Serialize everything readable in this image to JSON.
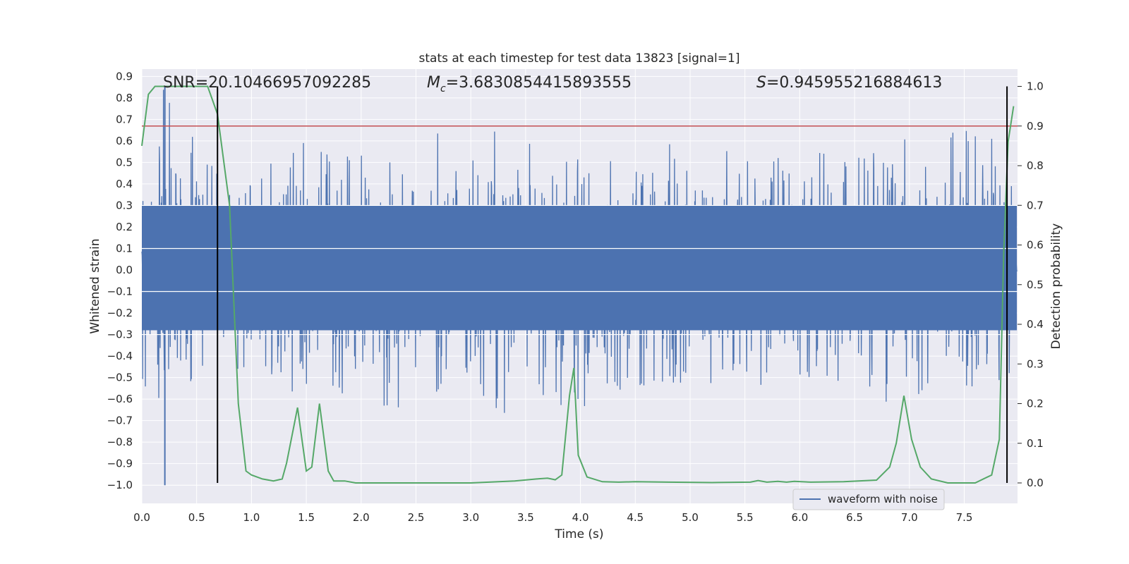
{
  "chart_data": {
    "type": "line",
    "title": "stats at each timestep for test data 13823 [signal=1]",
    "xlabel": "Time (s)",
    "ylabel": "Whitened strain",
    "y2label": "Detection probability",
    "xlim": [
      0.0,
      8.0
    ],
    "ylim": [
      -1.09,
      0.93
    ],
    "y2lim": [
      -0.05,
      1.04
    ],
    "x_ticks": [
      "0.0",
      "0.5",
      "1.0",
      "1.5",
      "2.0",
      "2.5",
      "3.0",
      "3.5",
      "4.0",
      "4.5",
      "5.0",
      "5.5",
      "6.0",
      "6.5",
      "7.0",
      "7.5"
    ],
    "y_ticks": [
      "0.9",
      "0.8",
      "0.7",
      "0.6",
      "0.5",
      "0.4",
      "0.3",
      "0.2",
      "0.1",
      "0.0",
      "−0.1",
      "−0.2",
      "−0.3",
      "−0.4",
      "−0.5",
      "−0.6",
      "−0.7",
      "−0.8",
      "−0.9",
      "−1.0"
    ],
    "y2_ticks": [
      "1.0",
      "0.9",
      "0.8",
      "0.7",
      "0.6",
      "0.5",
      "0.4",
      "0.3",
      "0.2",
      "0.1",
      "0.0"
    ],
    "grid": true,
    "legend": {
      "location": "lower-right",
      "entries": [
        "waveform with noise"
      ]
    },
    "annotations": {
      "snr": "SNR=20.10466957092285",
      "mc_symbol": "M",
      "mc_sub": "c",
      "mc_value": "=3.6830854415893555",
      "s_symbol": "S",
      "s_value": "=0.945955216884613"
    },
    "colors": {
      "waveform": "#4c72b0",
      "probability": "#55a868",
      "threshold": "#c44e52",
      "marker": "#000000",
      "plot_bg": "#eaeaf2",
      "grid": "#ffffff"
    },
    "threshold_probability": 0.9,
    "vertical_markers_time": [
      0.69,
      7.89
    ],
    "waveform_envelope": {
      "x": [
        0.0,
        0.2,
        0.38,
        0.55,
        0.7,
        1.0,
        1.5,
        2.0,
        2.3,
        2.75,
        3.0,
        3.25,
        3.5,
        3.9,
        4.5,
        5.0,
        5.5,
        6.0,
        6.5,
        6.8,
        7.15,
        7.5,
        7.7,
        8.0
      ],
      "upper": [
        0.45,
        0.86,
        0.65,
        0.6,
        0.5,
        0.45,
        0.6,
        0.55,
        0.52,
        0.67,
        0.6,
        0.55,
        0.6,
        0.55,
        0.6,
        0.6,
        0.57,
        0.52,
        0.6,
        0.55,
        0.75,
        0.67,
        0.6,
        0.4
      ],
      "lower": [
        -0.5,
        -0.9,
        -0.6,
        -0.55,
        -0.5,
        -0.45,
        -0.65,
        -0.6,
        -0.76,
        -0.55,
        -0.5,
        -0.7,
        -0.55,
        -0.7,
        -0.55,
        -0.55,
        -0.5,
        -0.5,
        -0.55,
        -0.64,
        -0.5,
        -0.55,
        -0.68,
        -0.45
      ]
    },
    "series": [
      {
        "name": "waveform with noise",
        "x": [
          0.0,
          0.0,
          0.21,
          0.21,
          0.21,
          8.0
        ],
        "y": [
          0.0,
          0.0,
          0.85,
          -1.0,
          0.0,
          0.0
        ]
      },
      {
        "x": [
          0.0,
          0.06,
          0.12,
          0.2,
          0.3,
          0.4,
          0.5,
          0.6,
          0.69,
          0.8,
          0.88,
          0.95,
          1.0,
          1.1,
          1.2,
          1.28,
          1.32,
          1.42,
          1.5,
          1.55,
          1.62,
          1.7,
          1.75,
          1.85,
          1.95,
          2.1,
          2.3,
          2.6,
          3.0,
          3.4,
          3.6,
          3.7,
          3.77,
          3.83,
          3.9,
          3.94,
          3.98,
          4.06,
          4.2,
          4.35,
          4.5,
          4.8,
          5.2,
          5.55,
          5.62,
          5.7,
          5.8,
          5.88,
          5.95,
          6.1,
          6.4,
          6.7,
          6.82,
          6.88,
          6.95,
          7.02,
          7.1,
          7.2,
          7.35,
          7.6,
          7.75,
          7.82,
          7.86,
          7.9,
          7.95
        ],
        "y": [
          0.85,
          0.98,
          1.0,
          1.0,
          1.0,
          1.0,
          1.0,
          1.0,
          0.93,
          0.7,
          0.2,
          0.03,
          0.02,
          0.01,
          0.005,
          0.01,
          0.05,
          0.19,
          0.03,
          0.04,
          0.2,
          0.03,
          0.005,
          0.005,
          0.0,
          0.0,
          0.0,
          0.0,
          0.0,
          0.005,
          0.01,
          0.012,
          0.008,
          0.02,
          0.22,
          0.29,
          0.07,
          0.015,
          0.003,
          0.002,
          0.003,
          0.002,
          0.001,
          0.002,
          0.006,
          0.002,
          0.004,
          0.002,
          0.004,
          0.002,
          0.003,
          0.007,
          0.04,
          0.1,
          0.22,
          0.11,
          0.04,
          0.01,
          0.0,
          0.0,
          0.02,
          0.11,
          0.58,
          0.86,
          0.95
        ]
      }
    ]
  }
}
